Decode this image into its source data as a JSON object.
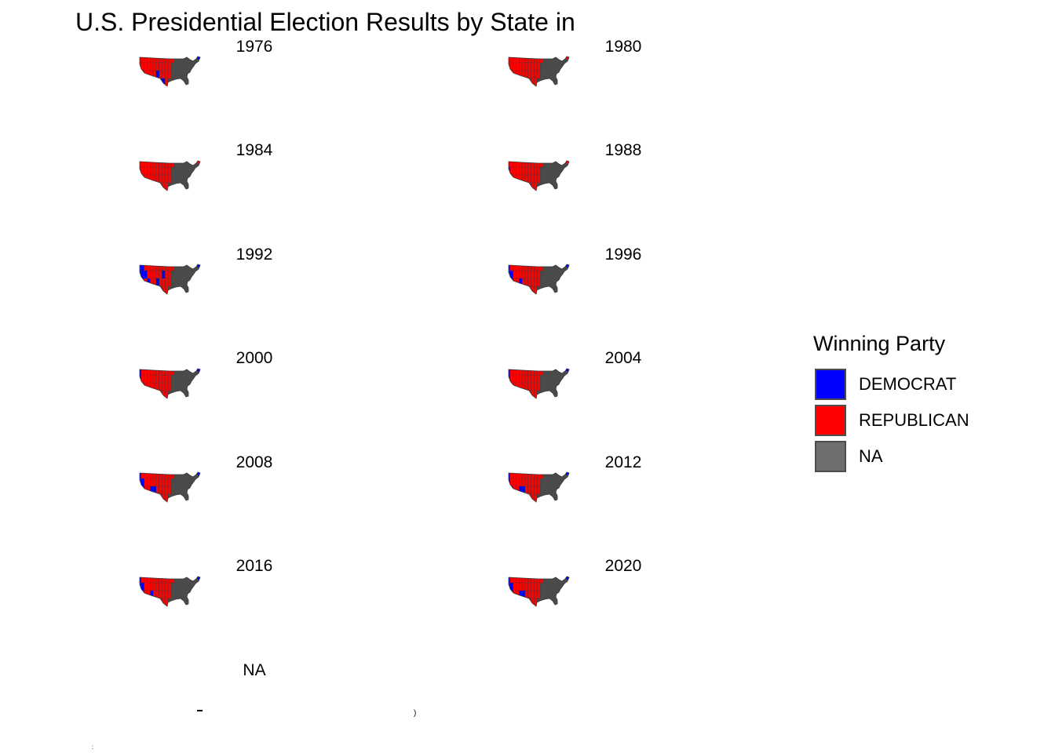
{
  "title": "U.S. Presidential Election Results by State in",
  "legend": {
    "title": "Winning Party",
    "items": [
      {
        "label": "DEMOCRAT",
        "color": "#0000FF"
      },
      {
        "label": "REPUBLICAN",
        "color": "#FF0000"
      },
      {
        "label": "NA",
        "color": "#6E6E6E"
      }
    ]
  },
  "colors": {
    "democrat": "#0000FF",
    "republican": "#FF0000",
    "no_data": "#4A4A4A",
    "border": "#3A3A3A"
  },
  "panels": [
    {
      "year": "1976"
    },
    {
      "year": "1980"
    },
    {
      "year": "1984"
    },
    {
      "year": "1988"
    },
    {
      "year": "1992"
    },
    {
      "year": "1996"
    },
    {
      "year": "2000"
    },
    {
      "year": "2004"
    },
    {
      "year": "2008"
    },
    {
      "year": "2012"
    },
    {
      "year": "2016"
    },
    {
      "year": "2020"
    },
    {
      "year": "NA"
    }
  ]
}
